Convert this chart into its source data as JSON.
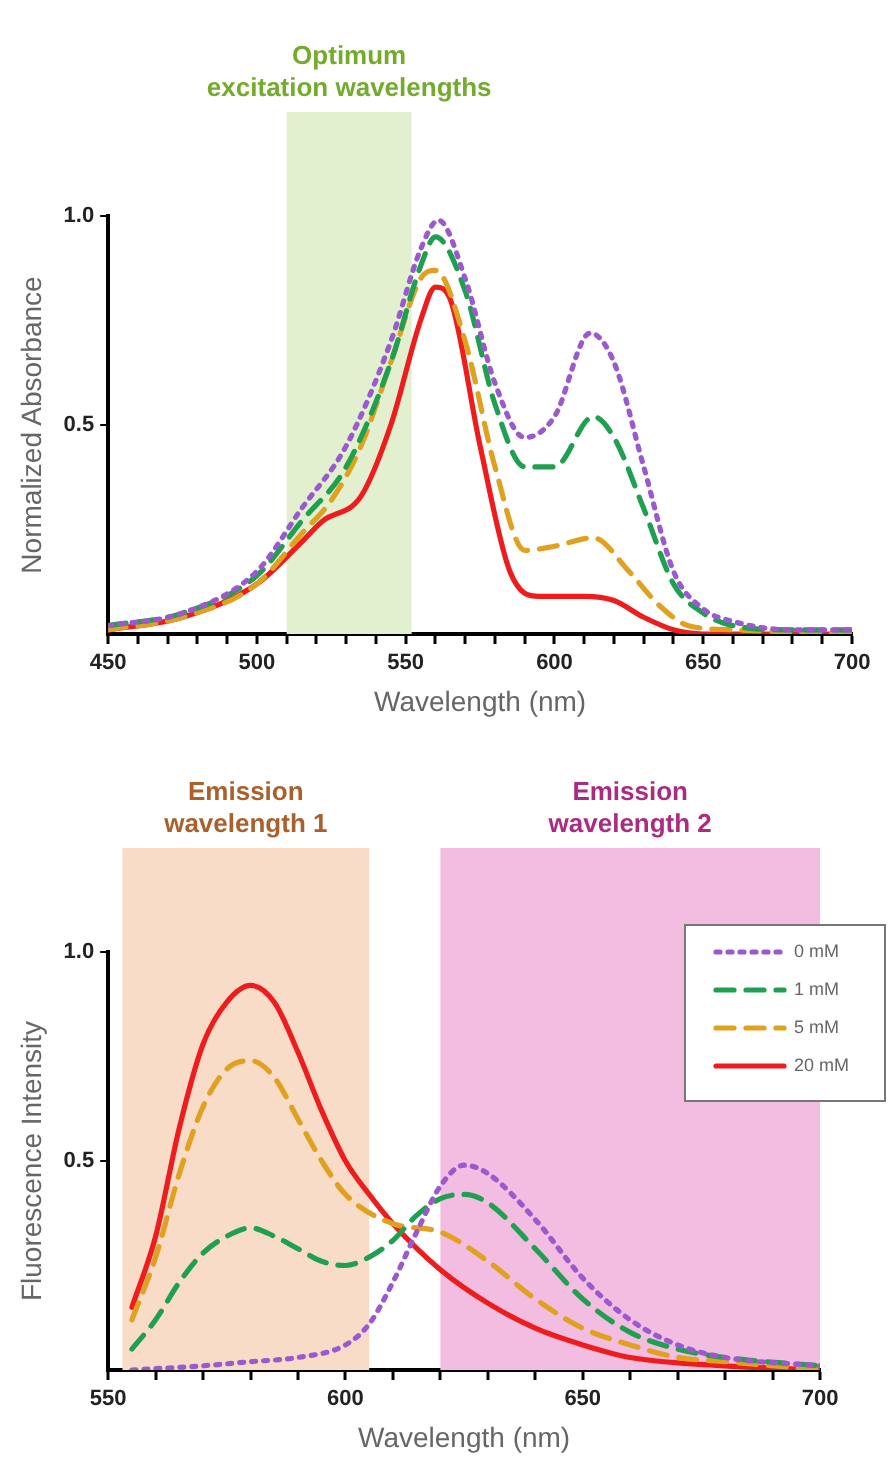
{
  "chart_data": [
    {
      "type": "line",
      "xlabel": "Wavelength (nm)",
      "ylabel": "Normalized Absorbance",
      "xlim": [
        450,
        700
      ],
      "xticks": [
        450,
        {
          "value": 460,
          "label": null
        },
        {
          "value": 470,
          "label": null
        },
        {
          "value": 480,
          "label": null
        },
        {
          "value": 490,
          "label": null
        },
        500,
        {
          "value": 510,
          "label": null
        },
        {
          "value": 520,
          "label": null
        },
        {
          "value": 530,
          "label": null
        },
        {
          "value": 540,
          "label": null
        },
        550,
        {
          "value": 560,
          "label": null
        },
        {
          "value": 570,
          "label": null
        },
        {
          "value": 580,
          "label": null
        },
        {
          "value": 590,
          "label": null
        },
        600,
        {
          "value": 610,
          "label": null
        },
        {
          "value": 620,
          "label": null
        },
        {
          "value": 630,
          "label": null
        },
        {
          "value": 640,
          "label": null
        },
        650,
        {
          "value": 660,
          "label": null
        },
        {
          "value": 670,
          "label": null
        },
        {
          "value": 680,
          "label": null
        },
        {
          "value": 690,
          "label": null
        },
        700
      ],
      "ylim": [
        0,
        1
      ],
      "yticks": [
        0.5,
        {
          "value": 1,
          "label": "1.0"
        }
      ],
      "grid": false,
      "legend": false,
      "marker": "none",
      "bands": [
        {
          "axis": "x",
          "from": 510,
          "to": 552,
          "label": "Optimum\nexcitation wavelengths",
          "color": "#e2f0d0"
        }
      ],
      "series": [
        {
          "color": "#9b59d0",
          "line_style": "dotted",
          "x": [
            450,
            475,
            500,
            515,
            530,
            545,
            555,
            561,
            570,
            580,
            590,
            600,
            612,
            620,
            630,
            640,
            650,
            660,
            680,
            700
          ],
          "values": [
            0.02,
            0.05,
            0.15,
            0.3,
            0.45,
            0.7,
            0.92,
            0.99,
            0.85,
            0.6,
            0.47,
            0.52,
            0.72,
            0.65,
            0.4,
            0.15,
            0.06,
            0.03,
            0.01,
            0.01
          ]
        },
        {
          "color": "#1fa050",
          "line_style": "dashed",
          "x": [
            450,
            475,
            500,
            515,
            530,
            545,
            555,
            560,
            570,
            580,
            590,
            600,
            613,
            620,
            630,
            640,
            650,
            660,
            680,
            700
          ],
          "values": [
            0.02,
            0.05,
            0.14,
            0.27,
            0.4,
            0.65,
            0.88,
            0.95,
            0.82,
            0.55,
            0.4,
            0.4,
            0.52,
            0.47,
            0.3,
            0.12,
            0.05,
            0.02,
            0.01,
            0.01
          ]
        },
        {
          "color": "#e0a020",
          "line_style": "dashed",
          "x": [
            450,
            475,
            500,
            515,
            525,
            535,
            545,
            555,
            560,
            570,
            580,
            590,
            600,
            613,
            625,
            635,
            645,
            660,
            700
          ],
          "values": [
            0.01,
            0.04,
            0.12,
            0.24,
            0.32,
            0.45,
            0.65,
            0.85,
            0.87,
            0.7,
            0.4,
            0.2,
            0.21,
            0.23,
            0.15,
            0.07,
            0.02,
            0.01,
            0
          ]
        },
        {
          "color": "#ee1c1c",
          "line_style": "solid",
          "x": [
            450,
            475,
            500,
            515,
            522,
            535,
            545,
            555,
            560,
            565,
            575,
            585,
            595,
            610,
            620,
            630,
            640,
            650,
            700
          ],
          "values": [
            0.01,
            0.04,
            0.12,
            0.22,
            0.27,
            0.33,
            0.5,
            0.75,
            0.83,
            0.8,
            0.45,
            0.15,
            0.09,
            0.09,
            0.08,
            0.04,
            0.01,
            0,
            0
          ]
        }
      ]
    },
    {
      "type": "line",
      "xlabel": "Wavelength (nm)",
      "ylabel": "Fluorescence Intensity",
      "xlim": [
        550,
        700
      ],
      "xticks": [
        550,
        {
          "value": 560,
          "label": null
        },
        {
          "value": 570,
          "label": null
        },
        {
          "value": 580,
          "label": null
        },
        {
          "value": 590,
          "label": null
        },
        600,
        {
          "value": 610,
          "label": null
        },
        {
          "value": 620,
          "label": null
        },
        {
          "value": 630,
          "label": null
        },
        {
          "value": 640,
          "label": null
        },
        650,
        {
          "value": 660,
          "label": null
        },
        {
          "value": 670,
          "label": null
        },
        {
          "value": 680,
          "label": null
        },
        {
          "value": 690,
          "label": null
        },
        700
      ],
      "ylim": [
        0,
        1
      ],
      "yticks": [
        0.5,
        {
          "value": 1,
          "label": "1.0"
        }
      ],
      "grid": false,
      "legend": "top right",
      "marker": "none",
      "bands": [
        {
          "axis": "x",
          "from": 553,
          "to": 605,
          "label": "Emission\nwavelength 1",
          "color": "#f9dcc8"
        },
        {
          "axis": "x",
          "from": 620,
          "to": 700,
          "label": "Emission\nwavelength 2",
          "color": "#f2bde0"
        }
      ],
      "series": [
        {
          "name": "0 mM",
          "color": "#9b59d0",
          "line_style": "dotted",
          "x": [
            555,
            570,
            580,
            590,
            600,
            605,
            610,
            615,
            620,
            625,
            630,
            640,
            650,
            660,
            670,
            680,
            700
          ],
          "values": [
            0,
            0.01,
            0.02,
            0.03,
            0.06,
            0.11,
            0.21,
            0.33,
            0.44,
            0.49,
            0.47,
            0.36,
            0.22,
            0.12,
            0.06,
            0.03,
            0.01
          ]
        },
        {
          "name": "1 mM",
          "color": "#1fa050",
          "line_style": "dashed",
          "x": [
            555,
            560,
            565,
            570,
            575,
            580,
            585,
            590,
            595,
            600,
            605,
            610,
            615,
            620,
            625,
            630,
            640,
            650,
            660,
            670,
            680,
            700
          ],
          "values": [
            0.05,
            0.12,
            0.21,
            0.28,
            0.32,
            0.34,
            0.32,
            0.29,
            0.26,
            0.25,
            0.27,
            0.31,
            0.37,
            0.41,
            0.42,
            0.4,
            0.29,
            0.17,
            0.09,
            0.05,
            0.03,
            0.01
          ]
        },
        {
          "name": "5 mM",
          "color": "#e0a020",
          "line_style": "dashed",
          "x": [
            555,
            560,
            565,
            570,
            575,
            580,
            585,
            590,
            595,
            600,
            610,
            620,
            630,
            640,
            650,
            660,
            670,
            680,
            700
          ],
          "values": [
            0.12,
            0.27,
            0.47,
            0.63,
            0.72,
            0.74,
            0.7,
            0.6,
            0.5,
            0.42,
            0.35,
            0.33,
            0.26,
            0.17,
            0.1,
            0.06,
            0.03,
            0.02,
            0
          ]
        },
        {
          "name": "20 mM",
          "color": "#ee1c1c",
          "line_style": "solid",
          "x": [
            555,
            560,
            565,
            570,
            575,
            580,
            585,
            590,
            595,
            600,
            605,
            610,
            620,
            630,
            640,
            650,
            660,
            680,
            700
          ],
          "values": [
            0.15,
            0.32,
            0.58,
            0.78,
            0.88,
            0.92,
            0.88,
            0.76,
            0.62,
            0.5,
            0.42,
            0.35,
            0.24,
            0.16,
            0.1,
            0.06,
            0.03,
            0.01,
            0
          ]
        }
      ]
    }
  ]
}
